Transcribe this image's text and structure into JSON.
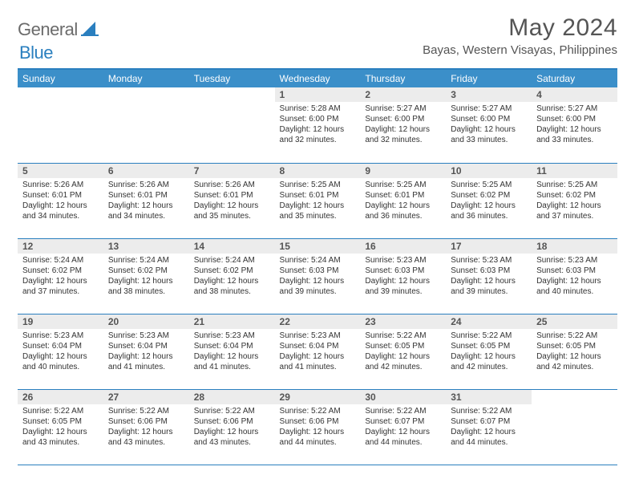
{
  "logo": {
    "general": "General",
    "blue": "Blue"
  },
  "title": "May 2024",
  "location": "Bayas, Western Visayas, Philippines",
  "colors": {
    "header_bg": "#3b8fc9",
    "border": "#2a7fbf",
    "daynum_bg": "#ececec",
    "text": "#333333",
    "title_text": "#555555"
  },
  "day_headers": [
    "Sunday",
    "Monday",
    "Tuesday",
    "Wednesday",
    "Thursday",
    "Friday",
    "Saturday"
  ],
  "weeks": [
    [
      {
        "blank": true
      },
      {
        "blank": true
      },
      {
        "blank": true
      },
      {
        "day": "1",
        "sunrise": "5:28 AM",
        "sunset": "6:00 PM",
        "daylight_h": "12",
        "daylight_m": "32"
      },
      {
        "day": "2",
        "sunrise": "5:27 AM",
        "sunset": "6:00 PM",
        "daylight_h": "12",
        "daylight_m": "32"
      },
      {
        "day": "3",
        "sunrise": "5:27 AM",
        "sunset": "6:00 PM",
        "daylight_h": "12",
        "daylight_m": "33"
      },
      {
        "day": "4",
        "sunrise": "5:27 AM",
        "sunset": "6:00 PM",
        "daylight_h": "12",
        "daylight_m": "33"
      }
    ],
    [
      {
        "day": "5",
        "sunrise": "5:26 AM",
        "sunset": "6:01 PM",
        "daylight_h": "12",
        "daylight_m": "34"
      },
      {
        "day": "6",
        "sunrise": "5:26 AM",
        "sunset": "6:01 PM",
        "daylight_h": "12",
        "daylight_m": "34"
      },
      {
        "day": "7",
        "sunrise": "5:26 AM",
        "sunset": "6:01 PM",
        "daylight_h": "12",
        "daylight_m": "35"
      },
      {
        "day": "8",
        "sunrise": "5:25 AM",
        "sunset": "6:01 PM",
        "daylight_h": "12",
        "daylight_m": "35"
      },
      {
        "day": "9",
        "sunrise": "5:25 AM",
        "sunset": "6:01 PM",
        "daylight_h": "12",
        "daylight_m": "36"
      },
      {
        "day": "10",
        "sunrise": "5:25 AM",
        "sunset": "6:02 PM",
        "daylight_h": "12",
        "daylight_m": "36"
      },
      {
        "day": "11",
        "sunrise": "5:25 AM",
        "sunset": "6:02 PM",
        "daylight_h": "12",
        "daylight_m": "37"
      }
    ],
    [
      {
        "day": "12",
        "sunrise": "5:24 AM",
        "sunset": "6:02 PM",
        "daylight_h": "12",
        "daylight_m": "37"
      },
      {
        "day": "13",
        "sunrise": "5:24 AM",
        "sunset": "6:02 PM",
        "daylight_h": "12",
        "daylight_m": "38"
      },
      {
        "day": "14",
        "sunrise": "5:24 AM",
        "sunset": "6:02 PM",
        "daylight_h": "12",
        "daylight_m": "38"
      },
      {
        "day": "15",
        "sunrise": "5:24 AM",
        "sunset": "6:03 PM",
        "daylight_h": "12",
        "daylight_m": "39"
      },
      {
        "day": "16",
        "sunrise": "5:23 AM",
        "sunset": "6:03 PM",
        "daylight_h": "12",
        "daylight_m": "39"
      },
      {
        "day": "17",
        "sunrise": "5:23 AM",
        "sunset": "6:03 PM",
        "daylight_h": "12",
        "daylight_m": "39"
      },
      {
        "day": "18",
        "sunrise": "5:23 AM",
        "sunset": "6:03 PM",
        "daylight_h": "12",
        "daylight_m": "40"
      }
    ],
    [
      {
        "day": "19",
        "sunrise": "5:23 AM",
        "sunset": "6:04 PM",
        "daylight_h": "12",
        "daylight_m": "40"
      },
      {
        "day": "20",
        "sunrise": "5:23 AM",
        "sunset": "6:04 PM",
        "daylight_h": "12",
        "daylight_m": "41"
      },
      {
        "day": "21",
        "sunrise": "5:23 AM",
        "sunset": "6:04 PM",
        "daylight_h": "12",
        "daylight_m": "41"
      },
      {
        "day": "22",
        "sunrise": "5:23 AM",
        "sunset": "6:04 PM",
        "daylight_h": "12",
        "daylight_m": "41"
      },
      {
        "day": "23",
        "sunrise": "5:22 AM",
        "sunset": "6:05 PM",
        "daylight_h": "12",
        "daylight_m": "42"
      },
      {
        "day": "24",
        "sunrise": "5:22 AM",
        "sunset": "6:05 PM",
        "daylight_h": "12",
        "daylight_m": "42"
      },
      {
        "day": "25",
        "sunrise": "5:22 AM",
        "sunset": "6:05 PM",
        "daylight_h": "12",
        "daylight_m": "42"
      }
    ],
    [
      {
        "day": "26",
        "sunrise": "5:22 AM",
        "sunset": "6:05 PM",
        "daylight_h": "12",
        "daylight_m": "43"
      },
      {
        "day": "27",
        "sunrise": "5:22 AM",
        "sunset": "6:06 PM",
        "daylight_h": "12",
        "daylight_m": "43"
      },
      {
        "day": "28",
        "sunrise": "5:22 AM",
        "sunset": "6:06 PM",
        "daylight_h": "12",
        "daylight_m": "43"
      },
      {
        "day": "29",
        "sunrise": "5:22 AM",
        "sunset": "6:06 PM",
        "daylight_h": "12",
        "daylight_m": "44"
      },
      {
        "day": "30",
        "sunrise": "5:22 AM",
        "sunset": "6:07 PM",
        "daylight_h": "12",
        "daylight_m": "44"
      },
      {
        "day": "31",
        "sunrise": "5:22 AM",
        "sunset": "6:07 PM",
        "daylight_h": "12",
        "daylight_m": "44"
      },
      {
        "blank": true
      }
    ]
  ],
  "labels": {
    "sunrise": "Sunrise:",
    "sunset": "Sunset:",
    "daylight_prefix": "Daylight:",
    "hours_word": "hours",
    "and_word": "and",
    "minutes_word": "minutes."
  }
}
